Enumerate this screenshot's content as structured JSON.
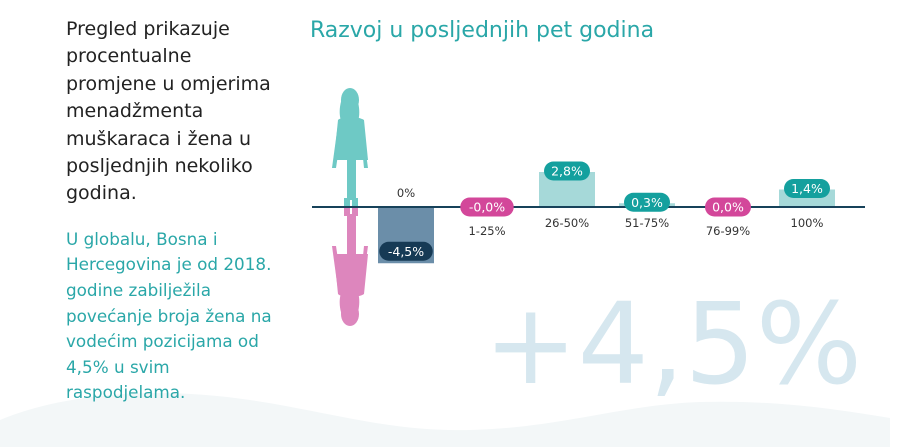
{
  "intro_text": "Pregled prikazuje procentualne promjene u omjerima menadžmenta muškaraca i žena u posljednjih nekoliko godina.",
  "highlight_text": "U globalu, Bosna i Hercegovina je od 2018. godine zabilježila povećanje broja žena na vodećim pozicijama od 4,5% u svim raspodjelama.",
  "big_number": "+4,5%",
  "colors": {
    "title": "#2aa7a8",
    "positive_bar": "#a6d9d9",
    "positive_badge": "#14a09e",
    "negative_bar": "#6b8ea9",
    "negative_badge": "#163a55",
    "zero_badge": "#d3479a",
    "axis": "#17425a",
    "big_number": "#d6e7ef",
    "woman_top": "#6ec9c5",
    "woman_reflection": "#dd86bd"
  },
  "icons": {
    "silhouette": "woman-silhouette-icon",
    "reflection": "woman-reflection-icon"
  },
  "chart_data": {
    "type": "bar",
    "title": "Razvoj u posljednjih pet godina",
    "categories": [
      "0%",
      "1-25%",
      "26-50%",
      "51-75%",
      "76-99%",
      "100%"
    ],
    "values": [
      -4.5,
      -0.0,
      2.8,
      0.3,
      0.0,
      1.4
    ],
    "value_labels": [
      "-4,5%",
      "-0,0%",
      "2,8%",
      "0,3%",
      "0,0%",
      "1,4%"
    ],
    "ylim": [
      -4.5,
      2.8
    ],
    "grid": false,
    "legend": "none"
  }
}
